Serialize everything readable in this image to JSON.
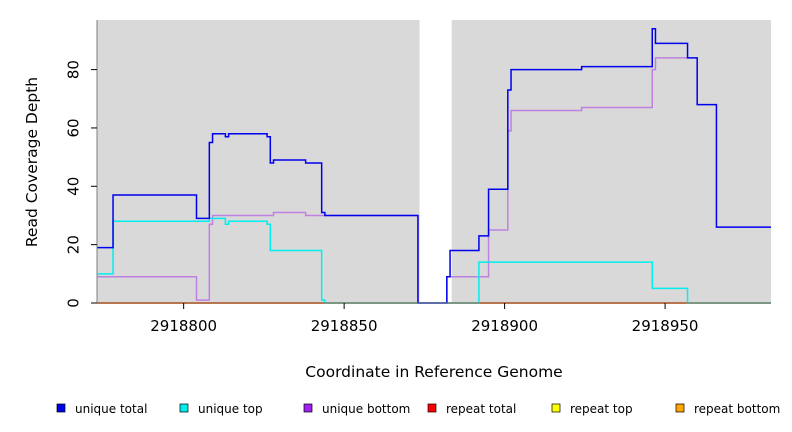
{
  "chart_data": {
    "type": "line",
    "title": "",
    "xlabel": "Coordinate in Reference Genome",
    "ylabel": "Read Coverage Depth",
    "xlim": [
      2918773,
      2918983
    ],
    "ylim": [
      0,
      97
    ],
    "x_ticks": [
      2918800,
      2918850,
      2918900,
      2918950
    ],
    "y_ticks": [
      0,
      20,
      40,
      60,
      80
    ],
    "plot_background": "#d9d9d9",
    "gap_region": [
      2918873.5,
      2918883.5
    ],
    "legend_position": "bottom",
    "series": [
      {
        "name": "unique total",
        "color": "#0000ee",
        "points": [
          [
            2918773,
            19
          ],
          [
            2918778,
            19
          ],
          [
            2918778,
            37
          ],
          [
            2918804,
            37
          ],
          [
            2918804,
            29
          ],
          [
            2918808,
            29
          ],
          [
            2918808,
            55
          ],
          [
            2918809,
            55
          ],
          [
            2918809,
            58
          ],
          [
            2918813,
            58
          ],
          [
            2918813,
            57
          ],
          [
            2918814,
            57
          ],
          [
            2918814,
            58
          ],
          [
            2918826,
            58
          ],
          [
            2918826,
            57
          ],
          [
            2918827,
            57
          ],
          [
            2918827,
            48
          ],
          [
            2918828,
            48
          ],
          [
            2918828,
            49
          ],
          [
            2918838,
            49
          ],
          [
            2918838,
            48
          ],
          [
            2918843,
            48
          ],
          [
            2918843,
            31
          ],
          [
            2918844,
            31
          ],
          [
            2918844,
            30
          ],
          [
            2918873,
            30
          ],
          [
            2918873,
            0
          ],
          [
            2918882,
            0
          ],
          [
            2918882,
            9
          ],
          [
            2918883,
            9
          ],
          [
            2918883,
            18
          ],
          [
            2918892,
            18
          ],
          [
            2918892,
            23
          ],
          [
            2918895,
            23
          ],
          [
            2918895,
            39
          ],
          [
            2918901,
            39
          ],
          [
            2918901,
            73
          ],
          [
            2918902,
            73
          ],
          [
            2918902,
            80
          ],
          [
            2918924,
            80
          ],
          [
            2918924,
            81
          ],
          [
            2918946,
            81
          ],
          [
            2918946,
            94
          ],
          [
            2918947,
            94
          ],
          [
            2918947,
            89
          ],
          [
            2918957,
            89
          ],
          [
            2918957,
            84
          ],
          [
            2918960,
            84
          ],
          [
            2918960,
            68
          ],
          [
            2918966,
            68
          ],
          [
            2918966,
            26
          ],
          [
            2918983,
            26
          ]
        ]
      },
      {
        "name": "unique top",
        "color": "#00eeee",
        "points": [
          [
            2918773,
            10
          ],
          [
            2918778,
            10
          ],
          [
            2918778,
            28
          ],
          [
            2918808,
            28
          ],
          [
            2918808,
            29
          ],
          [
            2918813,
            29
          ],
          [
            2918813,
            27
          ],
          [
            2918814,
            27
          ],
          [
            2918814,
            28
          ],
          [
            2918826,
            28
          ],
          [
            2918826,
            27
          ],
          [
            2918827,
            27
          ],
          [
            2918827,
            18
          ],
          [
            2918843,
            18
          ],
          [
            2918843,
            1
          ],
          [
            2918844,
            1
          ],
          [
            2918844,
            0
          ],
          [
            2918892,
            0
          ],
          [
            2918892,
            14
          ],
          [
            2918946,
            14
          ],
          [
            2918946,
            5
          ],
          [
            2918957,
            5
          ],
          [
            2918957,
            0
          ],
          [
            2918983,
            0
          ]
        ]
      },
      {
        "name": "unique bottom",
        "color": "#c080e0",
        "points": [
          [
            2918773,
            9
          ],
          [
            2918804,
            9
          ],
          [
            2918804,
            1
          ],
          [
            2918808,
            1
          ],
          [
            2918808,
            27
          ],
          [
            2918809,
            27
          ],
          [
            2918809,
            30
          ],
          [
            2918828,
            30
          ],
          [
            2918828,
            31
          ],
          [
            2918838,
            31
          ],
          [
            2918838,
            30
          ],
          [
            2918873,
            30
          ],
          [
            2918873,
            0
          ],
          [
            2918882,
            0
          ],
          [
            2918882,
            9
          ],
          [
            2918895,
            9
          ],
          [
            2918895,
            25
          ],
          [
            2918901,
            25
          ],
          [
            2918901,
            59
          ],
          [
            2918902,
            59
          ],
          [
            2918902,
            66
          ],
          [
            2918924,
            66
          ],
          [
            2918924,
            67
          ],
          [
            2918946,
            67
          ],
          [
            2918946,
            80
          ],
          [
            2918947,
            80
          ],
          [
            2918947,
            84
          ],
          [
            2918957,
            84
          ]
        ]
      },
      {
        "name": "repeat total",
        "color": "#ee0000",
        "points": [
          [
            2918773,
            0
          ],
          [
            2918983,
            0
          ]
        ]
      },
      {
        "name": "repeat top",
        "color": "#eeee00",
        "points": [
          [
            2918773,
            0
          ],
          [
            2918983,
            0
          ]
        ]
      },
      {
        "name": "repeat bottom",
        "color": "#ee9a00",
        "points": [
          [
            2918773,
            0
          ],
          [
            2918983,
            0
          ]
        ]
      }
    ],
    "legend": [
      {
        "label": "unique total",
        "color": "#0000ee"
      },
      {
        "label": "unique top",
        "color": "#00eeee"
      },
      {
        "label": "unique bottom",
        "color": "#a020f0"
      },
      {
        "label": "repeat total",
        "color": "#ff0000"
      },
      {
        "label": "repeat top",
        "color": "#ffff00"
      },
      {
        "label": "repeat bottom",
        "color": "#ffa500"
      }
    ]
  }
}
